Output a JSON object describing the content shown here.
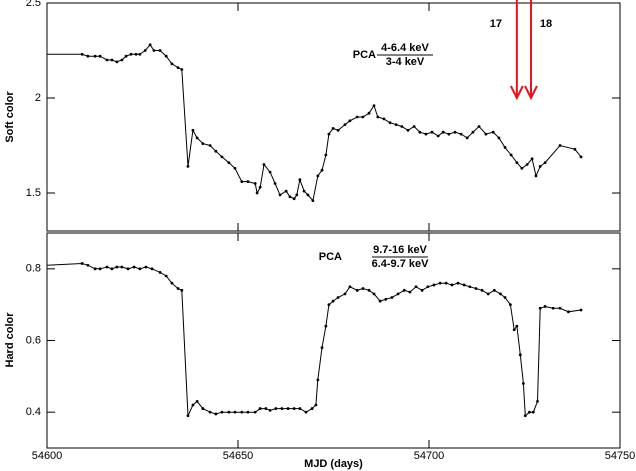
{
  "chart_data": [
    {
      "type": "line",
      "ylabel": "Soft color",
      "color": "#000000",
      "xlim": [
        54600,
        54750
      ],
      "xticks": [
        54600,
        54650,
        54700,
        54750
      ],
      "ylim": [
        1.3,
        2.5
      ],
      "yticks": [
        1.5,
        2,
        2.5
      ],
      "annotation": {
        "prefix": "PCA",
        "numerator": "4-6.4 keV",
        "denominator": "3-4 keV"
      },
      "arrows": {
        "color": "#e8141c",
        "items": [
          {
            "x": 54723.0,
            "label": "17"
          },
          {
            "x": 54726.7,
            "label": "18"
          }
        ]
      },
      "x": [
        54600,
        54609.2,
        54610.7,
        54612.6,
        54613.9,
        54615.7,
        54617.0,
        54618.3,
        54619.6,
        54620.7,
        54622.0,
        54623.3,
        54624.3,
        54625.7,
        54627.0,
        54628.0,
        54629.6,
        54631.2,
        54632.7,
        54634.3,
        54635.3,
        54636.9,
        54638.2,
        54639.3,
        54640.8,
        54642.7,
        54644.2,
        54645.8,
        54647.6,
        54649.2,
        54651.0,
        54652.6,
        54654.5,
        54655.0,
        54655.8,
        54656.8,
        54658.4,
        54659.7,
        54661.0,
        54662.6,
        54663.6,
        54664.7,
        54665.4,
        54666.2,
        54667.3,
        54668.3,
        54669.6,
        54670.9,
        54672.0,
        54673.0,
        54673.8,
        54674.9,
        54676.2,
        54678.0,
        54679.3,
        54681.2,
        54682.7,
        54684.3,
        54685.6,
        54686.6,
        54688.2,
        54689.8,
        54691.4,
        54692.9,
        54694.5,
        54696.1,
        54697.6,
        54699.2,
        54700.8,
        54702.4,
        54703.7,
        54705.2,
        54706.8,
        54708.4,
        54710.0,
        54711.5,
        54713.1,
        54714.9,
        54716.8,
        54718.3,
        54719.9,
        54721.5,
        54723.0,
        54724.3,
        54725.7,
        54727.0,
        54728.0,
        54729.1,
        54730.4,
        54734.3,
        54738.2,
        54739.8
      ],
      "values": [
        2.23,
        2.23,
        2.22,
        2.22,
        2.22,
        2.2,
        2.2,
        2.19,
        2.2,
        2.22,
        2.23,
        2.23,
        2.23,
        2.25,
        2.28,
        2.25,
        2.25,
        2.22,
        2.18,
        2.16,
        2.15,
        1.64,
        1.83,
        1.79,
        1.76,
        1.75,
        1.72,
        1.69,
        1.66,
        1.63,
        1.56,
        1.56,
        1.55,
        1.5,
        1.53,
        1.65,
        1.61,
        1.55,
        1.49,
        1.51,
        1.48,
        1.47,
        1.49,
        1.57,
        1.51,
        1.49,
        1.46,
        1.59,
        1.62,
        1.7,
        1.81,
        1.84,
        1.83,
        1.86,
        1.88,
        1.9,
        1.9,
        1.92,
        1.96,
        1.9,
        1.89,
        1.87,
        1.86,
        1.85,
        1.83,
        1.85,
        1.82,
        1.81,
        1.82,
        1.8,
        1.82,
        1.81,
        1.82,
        1.81,
        1.79,
        1.82,
        1.85,
        1.81,
        1.82,
        1.79,
        1.74,
        1.7,
        1.66,
        1.63,
        1.65,
        1.68,
        1.59,
        1.64,
        1.66,
        1.75,
        1.73,
        1.69
      ]
    },
    {
      "type": "line",
      "ylabel": "Hard color",
      "xlabel": "MJD (days)",
      "color": "#000000",
      "xlim": [
        54600,
        54750
      ],
      "xticks": [
        54600,
        54650,
        54700,
        54750
      ],
      "ylim": [
        0.3,
        0.9
      ],
      "yticks": [
        0.4,
        0.6,
        0.8
      ],
      "annotation": {
        "prefix": "PCA",
        "numerator": "9.7-16 keV",
        "denominator": "6.4-9.7 keV"
      },
      "x": [
        54600,
        54609.2,
        54610.7,
        54612.6,
        54613.9,
        54615.7,
        54617.0,
        54618.3,
        54619.6,
        54621.2,
        54622.8,
        54624.3,
        54625.9,
        54627.5,
        54629.6,
        54631.2,
        54632.7,
        54634.3,
        54635.3,
        54636.9,
        54638.2,
        54639.3,
        54640.8,
        54642.7,
        54644.2,
        54645.8,
        54647.6,
        54649.2,
        54651.0,
        54652.6,
        54654.5,
        54655.8,
        54657.3,
        54658.4,
        54659.9,
        54661.5,
        54663.1,
        54664.7,
        54666.2,
        54667.8,
        54669.4,
        54670.4,
        54670.9,
        54672.0,
        54673.0,
        54673.8,
        54674.9,
        54676.2,
        54678.0,
        54679.3,
        54681.2,
        54682.7,
        54684.3,
        54685.6,
        54687.2,
        54688.7,
        54690.3,
        54691.9,
        54693.5,
        54695.0,
        54696.6,
        54698.2,
        54699.7,
        54701.3,
        54702.9,
        54704.5,
        54706.0,
        54707.6,
        54709.2,
        54710.7,
        54712.3,
        54713.9,
        54715.5,
        54717.1,
        54718.7,
        54719.9,
        54721.3,
        54722.3,
        54723.0,
        54723.9,
        54724.7,
        54725.2,
        54726.3,
        54727.3,
        54728.4,
        54729.1,
        54730.4,
        54732.5,
        54734.3,
        54736.5,
        54739.8
      ],
      "values": [
        0.81,
        0.815,
        0.81,
        0.8,
        0.8,
        0.805,
        0.8,
        0.805,
        0.805,
        0.8,
        0.805,
        0.8,
        0.805,
        0.8,
        0.79,
        0.78,
        0.76,
        0.745,
        0.74,
        0.39,
        0.42,
        0.43,
        0.41,
        0.4,
        0.395,
        0.4,
        0.4,
        0.4,
        0.4,
        0.4,
        0.4,
        0.41,
        0.41,
        0.405,
        0.41,
        0.41,
        0.41,
        0.41,
        0.41,
        0.4,
        0.41,
        0.42,
        0.49,
        0.58,
        0.64,
        0.7,
        0.71,
        0.72,
        0.73,
        0.75,
        0.74,
        0.745,
        0.74,
        0.73,
        0.71,
        0.715,
        0.72,
        0.73,
        0.74,
        0.735,
        0.75,
        0.74,
        0.75,
        0.755,
        0.76,
        0.76,
        0.755,
        0.76,
        0.755,
        0.75,
        0.745,
        0.74,
        0.73,
        0.74,
        0.73,
        0.72,
        0.7,
        0.63,
        0.64,
        0.56,
        0.48,
        0.39,
        0.4,
        0.4,
        0.43,
        0.69,
        0.695,
        0.69,
        0.69,
        0.68,
        0.685
      ]
    }
  ]
}
